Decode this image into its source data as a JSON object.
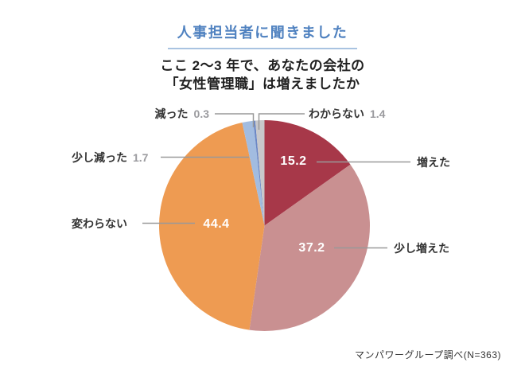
{
  "header": {
    "title": "人事担当者に聞きました",
    "question_line1": "ここ 2～3 年で、あなたの会社の",
    "question_line2": "「女性管理職」は増えましたか"
  },
  "footer": {
    "source": "マンパワーグループ調べ(N=363)"
  },
  "colors": {
    "title_blue": "#5082c0",
    "title_underline": "#a9c3e1",
    "label_text": "#333333",
    "muted_value_text": "#9b9b9f",
    "inside_value_text": "#ffffff",
    "leader_line": "#999999",
    "background": "#ffffff"
  },
  "chart_data": {
    "type": "pie",
    "title": "ここ2～3年で、あなたの会社の「女性管理職」は増えましたか",
    "unit": "%",
    "start_angle_deg": 0,
    "direction": "clockwise",
    "legend_position": "outside-labels-with-leader-lines",
    "slices": [
      {
        "label": "増えた",
        "value": 15.2,
        "color": "#a73849",
        "value_position": "inside"
      },
      {
        "label": "少し増えた",
        "value": 37.2,
        "color": "#c99091",
        "value_position": "inside"
      },
      {
        "label": "変わらない",
        "value": 44.4,
        "color": "#ee9b52",
        "value_position": "inside"
      },
      {
        "label": "少し減った",
        "value": 1.7,
        "color": "#a2bce0",
        "value_position": "outside"
      },
      {
        "label": "減った",
        "value": 0.3,
        "color": "#6b87c5",
        "value_position": "outside"
      },
      {
        "label": "わからない",
        "value": 1.4,
        "color": "#c8c8cb",
        "value_position": "outside"
      }
    ]
  }
}
